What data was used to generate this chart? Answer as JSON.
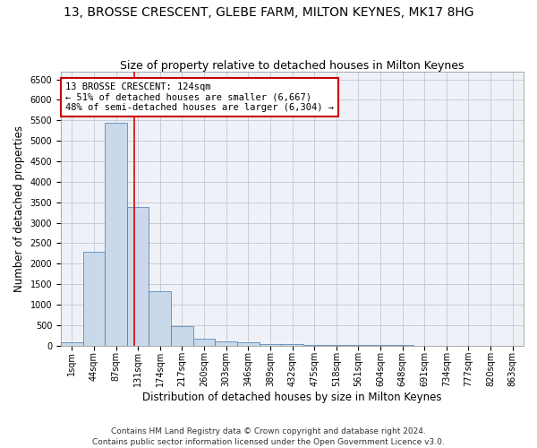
{
  "title": "13, BROSSE CRESCENT, GLEBE FARM, MILTON KEYNES, MK17 8HG",
  "subtitle": "Size of property relative to detached houses in Milton Keynes",
  "xlabel": "Distribution of detached houses by size in Milton Keynes",
  "ylabel": "Number of detached properties",
  "footer_line1": "Contains HM Land Registry data © Crown copyright and database right 2024.",
  "footer_line2": "Contains public sector information licensed under the Open Government Licence v3.0.",
  "annotation_line1": "13 BROSSE CRESCENT: 124sqm",
  "annotation_line2": "← 51% of detached houses are smaller (6,667)",
  "annotation_line3": "48% of semi-detached houses are larger (6,304) →",
  "bar_color": "#c9d9ea",
  "bar_edge_color": "#4477aa",
  "categories": [
    "1sqm",
    "44sqm",
    "87sqm",
    "131sqm",
    "174sqm",
    "217sqm",
    "260sqm",
    "303sqm",
    "346sqm",
    "389sqm",
    "432sqm",
    "475sqm",
    "518sqm",
    "561sqm",
    "604sqm",
    "648sqm",
    "691sqm",
    "734sqm",
    "777sqm",
    "820sqm",
    "863sqm"
  ],
  "bar_values": [
    70,
    2280,
    5450,
    3380,
    1320,
    480,
    165,
    95,
    70,
    45,
    30,
    20,
    15,
    10,
    8,
    5,
    4,
    3,
    2,
    2,
    1
  ],
  "red_line_x": 2.85,
  "ylim": [
    0,
    6700
  ],
  "yticks": [
    0,
    500,
    1000,
    1500,
    2000,
    2500,
    3000,
    3500,
    4000,
    4500,
    5000,
    5500,
    6000,
    6500
  ],
  "background_color": "#eef2f8",
  "grid_color": "#c8ccd8",
  "title_fontsize": 10,
  "subtitle_fontsize": 9,
  "axis_label_fontsize": 8.5,
  "tick_fontsize": 7,
  "annotation_fontsize": 7.5,
  "footer_fontsize": 6.5,
  "annotation_box_color": "#ffffff",
  "annotation_box_edge": "#cc0000",
  "red_line_color": "#dd0000"
}
